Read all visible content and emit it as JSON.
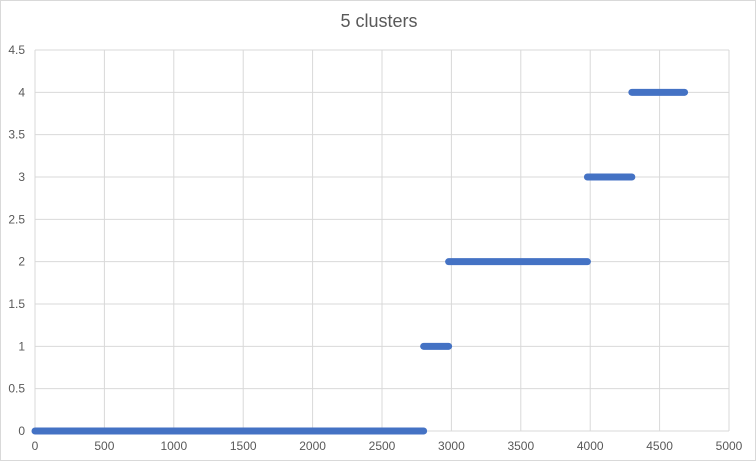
{
  "chart_data": {
    "type": "scatter",
    "title": "5 clusters",
    "xlabel": "",
    "ylabel": "",
    "xlim": [
      0,
      5000
    ],
    "ylim": [
      0,
      4.5
    ],
    "x_ticks": [
      0,
      500,
      1000,
      1500,
      2000,
      2500,
      3000,
      3500,
      4000,
      4500,
      5000
    ],
    "y_ticks": [
      0,
      0.5,
      1,
      1.5,
      2,
      2.5,
      3,
      3.5,
      4,
      4.5
    ],
    "grid": true,
    "legend": "none",
    "series_color": "#4472C4",
    "clusters": [
      {
        "y": 0,
        "x_start": 0,
        "x_end": 2800
      },
      {
        "y": 1,
        "x_start": 2800,
        "x_end": 2980
      },
      {
        "y": 2,
        "x_start": 2980,
        "x_end": 3980
      },
      {
        "y": 3,
        "x_start": 3980,
        "x_end": 4300
      },
      {
        "y": 4,
        "x_start": 4300,
        "x_end": 4680
      }
    ]
  }
}
